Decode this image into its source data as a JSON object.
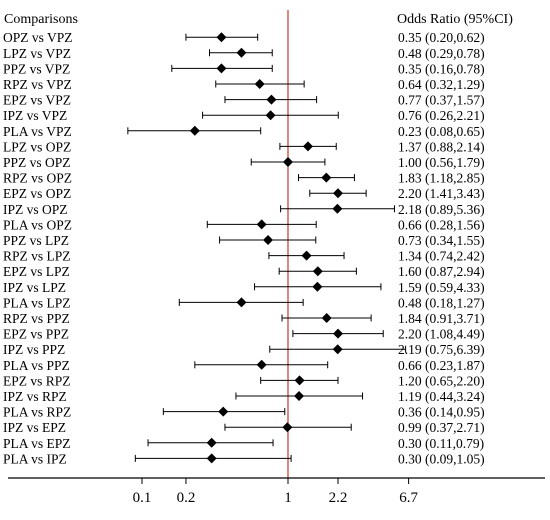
{
  "chart_data": {
    "type": "forest",
    "left_header": "Comparisons",
    "right_header": "Odds Ratio (95%CI)",
    "x_scale": "log",
    "x_ticks": [
      {
        "value": 0.1,
        "label": "0.1"
      },
      {
        "value": 0.2,
        "label": "0.2"
      },
      {
        "value": 1,
        "label": "1"
      },
      {
        "value": 2.2,
        "label": "2.2"
      },
      {
        "value": 6.7,
        "label": "6.7"
      }
    ],
    "reference_line": 1,
    "reference_color": "#c0392b",
    "rows": [
      {
        "label": "OPZ vs VPZ",
        "or": 0.35,
        "lo": 0.2,
        "hi": 0.62,
        "text": "0.35 (0.20,0.62)"
      },
      {
        "label": "LPZ vs VPZ",
        "or": 0.48,
        "lo": 0.29,
        "hi": 0.78,
        "text": "0.48 (0.29,0.78)"
      },
      {
        "label": "PPZ vs VPZ",
        "or": 0.35,
        "lo": 0.16,
        "hi": 0.78,
        "text": "0.35 (0.16,0.78)"
      },
      {
        "label": "RPZ vs VPZ",
        "or": 0.64,
        "lo": 0.32,
        "hi": 1.29,
        "text": "0.64 (0.32,1.29)"
      },
      {
        "label": "EPZ vs VPZ",
        "or": 0.77,
        "lo": 0.37,
        "hi": 1.57,
        "text": "0.77 (0.37,1.57)"
      },
      {
        "label": "IPZ vs VPZ",
        "or": 0.76,
        "lo": 0.26,
        "hi": 2.21,
        "text": "0.76 (0.26,2.21)"
      },
      {
        "label": "PLA vs VPZ",
        "or": 0.23,
        "lo": 0.08,
        "hi": 0.65,
        "text": "0.23 (0.08,0.65)"
      },
      {
        "label": "LPZ vs OPZ",
        "or": 1.37,
        "lo": 0.88,
        "hi": 2.14,
        "text": "1.37 (0.88,2.14)"
      },
      {
        "label": "PPZ vs OPZ",
        "or": 1.0,
        "lo": 0.56,
        "hi": 1.79,
        "text": "1.00 (0.56,1.79)"
      },
      {
        "label": "RPZ vs OPZ",
        "or": 1.83,
        "lo": 1.18,
        "hi": 2.85,
        "text": "1.83 (1.18,2.85)"
      },
      {
        "label": "EPZ vs OPZ",
        "or": 2.2,
        "lo": 1.41,
        "hi": 3.43,
        "text": "2.20 (1.41,3.43)"
      },
      {
        "label": "IPZ vs OPZ",
        "or": 2.18,
        "lo": 0.89,
        "hi": 5.36,
        "text": "2.18 (0.89,5.36)"
      },
      {
        "label": "PLA vs OPZ",
        "or": 0.66,
        "lo": 0.28,
        "hi": 1.56,
        "text": "0.66 (0.28,1.56)"
      },
      {
        "label": "PPZ vs LPZ",
        "or": 0.73,
        "lo": 0.34,
        "hi": 1.55,
        "text": "0.73 (0.34,1.55)"
      },
      {
        "label": "RPZ vs LPZ",
        "or": 1.34,
        "lo": 0.74,
        "hi": 2.42,
        "text": "1.34 (0.74,2.42)"
      },
      {
        "label": "EPZ vs LPZ",
        "or": 1.6,
        "lo": 0.87,
        "hi": 2.94,
        "text": "1.60 (0.87,2.94)"
      },
      {
        "label": "IPZ vs LPZ",
        "or": 1.59,
        "lo": 0.59,
        "hi": 4.33,
        "text": "1.59 (0.59,4.33)"
      },
      {
        "label": "PLA vs LPZ",
        "or": 0.48,
        "lo": 0.18,
        "hi": 1.27,
        "text": "0.48 (0.18,1.27)"
      },
      {
        "label": "RPZ vs PPZ",
        "or": 1.84,
        "lo": 0.91,
        "hi": 3.71,
        "text": "1.84 (0.91,3.71)"
      },
      {
        "label": "EPZ vs PPZ",
        "or": 2.2,
        "lo": 1.08,
        "hi": 4.49,
        "text": "2.20 (1.08,4.49)"
      },
      {
        "label": "IPZ vs PPZ",
        "or": 2.19,
        "lo": 0.75,
        "hi": 6.39,
        "text": "2.19 (0.75,6.39)"
      },
      {
        "label": "PLA vs PPZ",
        "or": 0.66,
        "lo": 0.23,
        "hi": 1.87,
        "text": "0.66 (0.23,1.87)"
      },
      {
        "label": "EPZ vs RPZ",
        "or": 1.2,
        "lo": 0.65,
        "hi": 2.2,
        "text": "1.20 (0.65,2.20)"
      },
      {
        "label": "IPZ vs RPZ",
        "or": 1.19,
        "lo": 0.44,
        "hi": 3.24,
        "text": "1.19 (0.44,3.24)"
      },
      {
        "label": "PLA vs RPZ",
        "or": 0.36,
        "lo": 0.14,
        "hi": 0.95,
        "text": "0.36 (0.14,0.95)"
      },
      {
        "label": "IPZ vs EPZ",
        "or": 0.99,
        "lo": 0.37,
        "hi": 2.71,
        "text": "0.99 (0.37,2.71)"
      },
      {
        "label": "PLA vs EPZ",
        "or": 0.3,
        "lo": 0.11,
        "hi": 0.79,
        "text": "0.30 (0.11,0.79)"
      },
      {
        "label": "PLA vs IPZ",
        "or": 0.3,
        "lo": 0.09,
        "hi": 1.05,
        "text": "0.30 (0.09,1.05)"
      }
    ]
  }
}
